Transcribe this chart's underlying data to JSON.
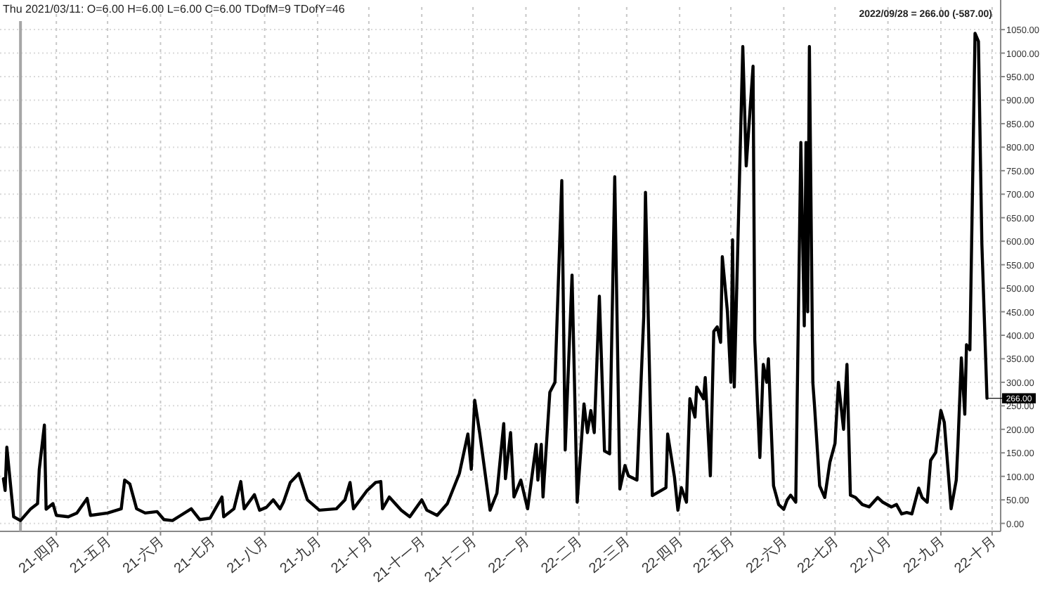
{
  "chart_data": {
    "type": "line",
    "title": "Thu  2021/03/11:  O=6.00  H=6.00  L=6.00  C=6.00  TDofM=9  TDofY=46",
    "subtitle": "2022/09/28 = 266.00 (-587.00)",
    "x": [
      "2021-03-01",
      "2021-03-02",
      "2021-03-03",
      "2021-03-07",
      "2021-03-11",
      "2021-03-17",
      "2021-03-21",
      "2021-03-22",
      "2021-03-25",
      "2021-03-26",
      "2021-03-30",
      "2021-04-01",
      "2021-04-08",
      "2021-04-13",
      "2021-04-19",
      "2021-04-21",
      "2021-05-01",
      "2021-05-09",
      "2021-05-11",
      "2021-05-14",
      "2021-05-18",
      "2021-05-23",
      "2021-05-30",
      "2021-06-03",
      "2021-06-08",
      "2021-06-19",
      "2021-06-24",
      "2021-06-30",
      "2021-07-07",
      "2021-07-08",
      "2021-07-14",
      "2021-07-18",
      "2021-07-20",
      "2021-07-26",
      "2021-07-29",
      "2021-08-02",
      "2021-08-06",
      "2021-08-10",
      "2021-08-12",
      "2021-08-16",
      "2021-08-21",
      "2021-08-26",
      "2021-09-02",
      "2021-09-12",
      "2021-09-17",
      "2021-09-20",
      "2021-09-22",
      "2021-09-30",
      "2021-10-05",
      "2021-10-08",
      "2021-10-09",
      "2021-10-13",
      "2021-10-20",
      "2021-10-25",
      "2021-11-01",
      "2021-11-04",
      "2021-11-10",
      "2021-11-16",
      "2021-11-23",
      "2021-11-28",
      "2021-11-30",
      "2021-12-02",
      "2021-12-05",
      "2021-12-11",
      "2021-12-15",
      "2021-12-19",
      "2021-12-20",
      "2021-12-23",
      "2021-12-25",
      "2021-12-29",
      "2022-01-02",
      "2022-01-07",
      "2022-01-08",
      "2022-01-10",
      "2022-01-11",
      "2022-01-15",
      "2022-01-18",
      "2022-01-22",
      "2022-01-24",
      "2022-01-28",
      "2022-01-31",
      "2022-02-04",
      "2022-02-06",
      "2022-02-08",
      "2022-02-10",
      "2022-02-13",
      "2022-02-16",
      "2022-02-19",
      "2022-02-22",
      "2022-02-25",
      "2022-02-28",
      "2022-03-02",
      "2022-03-07",
      "2022-03-11",
      "2022-03-12",
      "2022-03-16",
      "2022-03-24",
      "2022-03-25",
      "2022-03-29",
      "2022-03-31",
      "2022-04-02",
      "2022-04-05",
      "2022-04-07",
      "2022-04-10",
      "2022-04-11",
      "2022-04-15",
      "2022-04-16",
      "2022-04-19",
      "2022-04-21",
      "2022-04-23",
      "2022-04-25",
      "2022-04-26",
      "2022-04-29",
      "2022-05-01",
      "2022-05-02",
      "2022-05-03",
      "2022-05-08",
      "2022-05-10",
      "2022-05-14",
      "2022-05-15",
      "2022-05-18",
      "2022-05-20",
      "2022-05-22",
      "2022-05-23",
      "2022-05-26",
      "2022-05-29",
      "2022-06-01",
      "2022-06-03",
      "2022-06-05",
      "2022-06-08",
      "2022-06-11",
      "2022-06-13",
      "2022-06-14",
      "2022-06-15",
      "2022-06-16",
      "2022-06-18",
      "2022-06-19",
      "2022-06-22",
      "2022-06-25",
      "2022-06-28",
      "2022-07-01",
      "2022-07-03",
      "2022-07-06",
      "2022-07-08",
      "2022-07-10",
      "2022-07-13",
      "2022-07-17",
      "2022-07-21",
      "2022-07-26",
      "2022-07-29",
      "2022-08-03",
      "2022-08-06",
      "2022-08-09",
      "2022-08-12",
      "2022-08-15",
      "2022-08-19",
      "2022-08-21",
      "2022-08-24",
      "2022-08-26",
      "2022-08-29",
      "2022-09-01",
      "2022-09-03",
      "2022-09-07",
      "2022-09-10",
      "2022-09-11",
      "2022-09-13",
      "2022-09-15",
      "2022-09-16",
      "2022-09-18",
      "2022-09-21",
      "2022-09-23",
      "2022-09-25",
      "2022-09-28"
    ],
    "series": [
      {
        "color": "#000000",
        "values": [
          95,
          70,
          162,
          14,
          6,
          31,
          42,
          115,
          209,
          30,
          42,
          17,
          14,
          22,
          53,
          17,
          22,
          31,
          92,
          84,
          31,
          22,
          25,
          8,
          6,
          31,
          8,
          11,
          56,
          14,
          31,
          89,
          31,
          61,
          28,
          34,
          50,
          31,
          45,
          87,
          106,
          50,
          28,
          31,
          50,
          87,
          31,
          70,
          87,
          89,
          31,
          56,
          28,
          14,
          50,
          28,
          17,
          42,
          106,
          190,
          115,
          262,
          190,
          28,
          64,
          212,
          95,
          193,
          56,
          92,
          31,
          168,
          92,
          168,
          56,
          279,
          300,
          729,
          156,
          528,
          45,
          254,
          193,
          240,
          193,
          483,
          154,
          148,
          737,
          73,
          123,
          101,
          92,
          440,
          704,
          59,
          76,
          190,
          98,
          28,
          76,
          45,
          265,
          226,
          290,
          265,
          310,
          101,
          408,
          418,
          385,
          567,
          450,
          300,
          603,
          290,
          1014,
          760,
          972,
          391,
          140,
          338,
          300,
          350,
          80,
          40,
          30,
          50,
          60,
          45,
          810,
          420,
          810,
          450,
          1014,
          300,
          250,
          80,
          55,
          130,
          170,
          300,
          200,
          338,
          60,
          55,
          40,
          35,
          55,
          45,
          35,
          40,
          20,
          23,
          20,
          75,
          55,
          45,
          134,
          151,
          240,
          215,
          31,
          92,
          168,
          352,
          232,
          380,
          369,
          1042,
          1025,
          595,
          266
        ]
      }
    ],
    "xlim": [
      "2021-02-27",
      "2022-10-06"
    ],
    "xticks": [
      {
        "value": "2021-04-01",
        "label": "21-四月"
      },
      {
        "value": "2021-05-01",
        "label": "21-五月"
      },
      {
        "value": "2021-06-01",
        "label": "21-六月"
      },
      {
        "value": "2021-07-01",
        "label": "21-七月"
      },
      {
        "value": "2021-08-01",
        "label": "21-八月"
      },
      {
        "value": "2021-09-01",
        "label": "21-九月"
      },
      {
        "value": "2021-10-01",
        "label": "21-十月"
      },
      {
        "value": "2021-11-01",
        "label": "21-十一月"
      },
      {
        "value": "2021-12-01",
        "label": "21-十二月"
      },
      {
        "value": "2022-01-01",
        "label": "22-一月"
      },
      {
        "value": "2022-02-01",
        "label": "22-二月"
      },
      {
        "value": "2022-03-01",
        "label": "22-三月"
      },
      {
        "value": "2022-04-01",
        "label": "22-四月"
      },
      {
        "value": "2022-05-01",
        "label": "22-五月"
      },
      {
        "value": "2022-06-01",
        "label": "22-六月"
      },
      {
        "value": "2022-07-01",
        "label": "22-七月"
      },
      {
        "value": "2022-08-01",
        "label": "22-八月"
      },
      {
        "value": "2022-09-01",
        "label": "22-九月"
      },
      {
        "value": "2022-10-01",
        "label": "22-十月"
      }
    ],
    "ylim": [
      -17,
      1098
    ],
    "yticks": [
      {
        "value": 0,
        "label": "0.00"
      },
      {
        "value": 50,
        "label": "50.00"
      },
      {
        "value": 100,
        "label": "100.00"
      },
      {
        "value": 150,
        "label": "150.00"
      },
      {
        "value": 200,
        "label": "200.00"
      },
      {
        "value": 250,
        "label": "250.00"
      },
      {
        "value": 300,
        "label": "300.00"
      },
      {
        "value": 350,
        "label": "350.00"
      },
      {
        "value": 400,
        "label": "400.00"
      },
      {
        "value": 450,
        "label": "450.00"
      },
      {
        "value": 500,
        "label": "500.00"
      },
      {
        "value": 550,
        "label": "550.00"
      },
      {
        "value": 600,
        "label": "600.00"
      },
      {
        "value": 650,
        "label": "650.00"
      },
      {
        "value": 700,
        "label": "700.00"
      },
      {
        "value": 750,
        "label": "750.00"
      },
      {
        "value": 800,
        "label": "800.00"
      },
      {
        "value": 850,
        "label": "850.00"
      },
      {
        "value": 900,
        "label": "900.00"
      },
      {
        "value": 950,
        "label": "950.00"
      },
      {
        "value": 1000,
        "label": "1000.00"
      },
      {
        "value": 1050,
        "label": "1050.00"
      }
    ],
    "annotations": [
      {
        "text": "266.00",
        "x": "2022-09-28",
        "y": 266
      }
    ],
    "ref_lines": [
      {
        "axis": "x",
        "value": "2021-03-11",
        "color": "#a6a6a6"
      }
    ],
    "grid": true,
    "line_style": "solid",
    "marker": "none"
  }
}
